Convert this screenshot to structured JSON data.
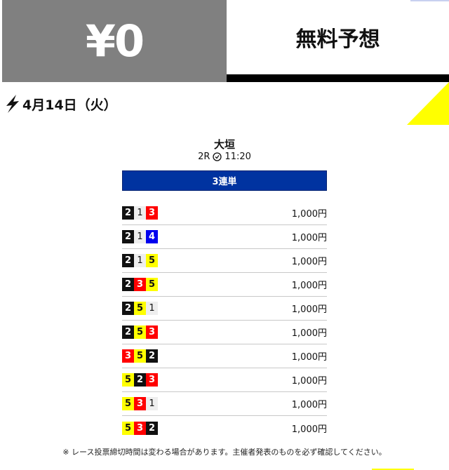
{
  "header": {
    "price": "¥0",
    "title": "無料予想"
  },
  "date": "4月14日（火）",
  "race": {
    "venue": "大垣",
    "race_no": "2R",
    "time": "11:20"
  },
  "bet_type": "3連単",
  "boat_colors": {
    "1": {
      "bg": "#eeeeee",
      "fg": "#111111"
    },
    "2": {
      "bg": "#111111",
      "fg": "#ffffff"
    },
    "3": {
      "bg": "#ff0000",
      "fg": "#ffffff"
    },
    "4": {
      "bg": "#0000ee",
      "fg": "#ffffff"
    },
    "5": {
      "bg": "#ffff00",
      "fg": "#111111"
    }
  },
  "picks": [
    {
      "boats": [
        "2",
        "1",
        "3"
      ],
      "amount": "1,000円"
    },
    {
      "boats": [
        "2",
        "1",
        "4"
      ],
      "amount": "1,000円"
    },
    {
      "boats": [
        "2",
        "1",
        "5"
      ],
      "amount": "1,000円"
    },
    {
      "boats": [
        "2",
        "3",
        "5"
      ],
      "amount": "1,000円"
    },
    {
      "boats": [
        "2",
        "5",
        "1"
      ],
      "amount": "1,000円"
    },
    {
      "boats": [
        "2",
        "5",
        "3"
      ],
      "amount": "1,000円"
    },
    {
      "boats": [
        "3",
        "5",
        "2"
      ],
      "amount": "1,000円"
    },
    {
      "boats": [
        "5",
        "2",
        "3"
      ],
      "amount": "1,000円"
    },
    {
      "boats": [
        "5",
        "3",
        "1"
      ],
      "amount": "1,000円"
    },
    {
      "boats": [
        "5",
        "3",
        "2"
      ],
      "amount": "1,000円"
    }
  ],
  "note": "※ レース投票締切時間は変わる場合があります。主催者発表のものを必ず確認してください。"
}
